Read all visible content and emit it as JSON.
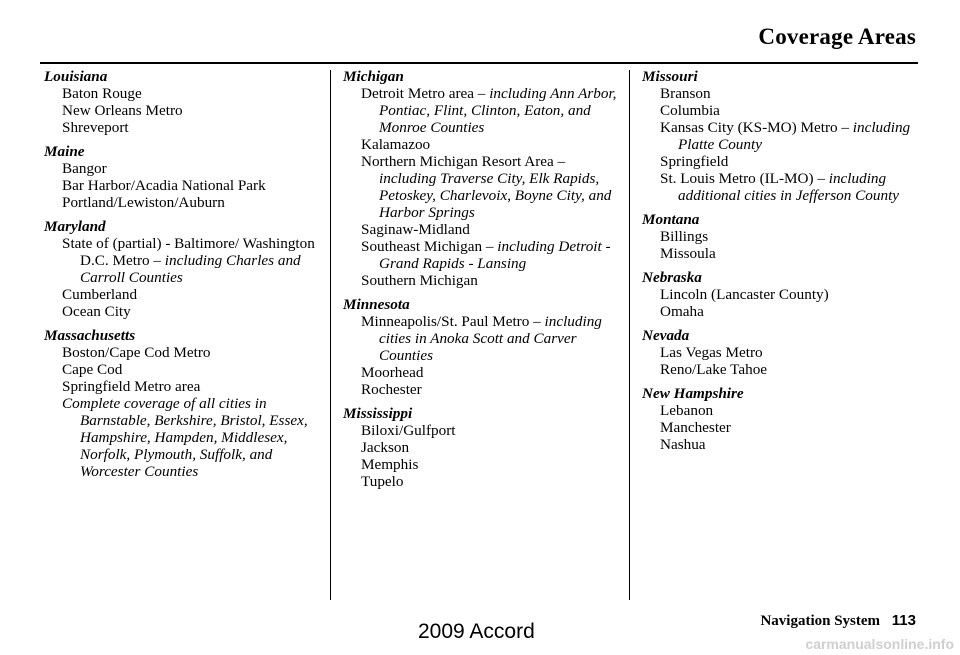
{
  "header": {
    "title": "Coverage Areas"
  },
  "columns": [
    [
      {
        "state": "Louisiana",
        "entries": [
          {
            "text": "Baton Rouge"
          },
          {
            "text": "New Orleans Metro"
          },
          {
            "text": "Shreveport"
          }
        ]
      },
      {
        "state": "Maine",
        "entries": [
          {
            "text": "Bangor"
          },
          {
            "text": "Bar Harbor/Acadia National Park"
          },
          {
            "text": "Portland/Lewiston/Auburn"
          }
        ]
      },
      {
        "state": "Maryland",
        "entries": [
          {
            "text": "State of (partial) - Baltimore/ Washington D.C. Metro – ",
            "detail": "including Charles and Carroll Counties"
          },
          {
            "text": "Cumberland"
          },
          {
            "text": "Ocean City"
          }
        ]
      },
      {
        "state": "Massachusetts",
        "entries": [
          {
            "text": "Boston/Cape Cod Metro"
          },
          {
            "text": "Cape Cod"
          },
          {
            "text": "Springfield Metro area"
          },
          {
            "text": "",
            "detail": "Complete coverage of all cities in Barnstable, Berkshire, Bristol, Essex, Hampshire, Hampden, Middlesex, Norfolk, Plymouth, Suffolk, and Worcester Counties"
          }
        ]
      }
    ],
    [
      {
        "state": "Michigan",
        "entries": [
          {
            "text": "Detroit Metro area – ",
            "detail": "including Ann Arbor, Pontiac, Flint, Clinton, Eaton, and Monroe Counties"
          },
          {
            "text": "Kalamazoo"
          },
          {
            "text": "Northern Michigan Resort Area – ",
            "detail": "including Traverse City, Elk Rapids, Petoskey, Charlevoix, Boyne City, and Harbor Springs"
          },
          {
            "text": "Saginaw-Midland"
          },
          {
            "text": "Southeast Michigan – ",
            "detail": "including Detroit - Grand Rapids - Lansing"
          },
          {
            "text": "Southern Michigan"
          }
        ]
      },
      {
        "state": "Minnesota",
        "entries": [
          {
            "text": "Minneapolis/St. Paul Metro – ",
            "detail": "including cities in Anoka Scott and Carver Counties"
          },
          {
            "text": "Moorhead"
          },
          {
            "text": "Rochester"
          }
        ]
      },
      {
        "state": "Mississippi",
        "entries": [
          {
            "text": "Biloxi/Gulfport"
          },
          {
            "text": "Jackson"
          },
          {
            "text": "Memphis"
          },
          {
            "text": "Tupelo"
          }
        ]
      }
    ],
    [
      {
        "state": "Missouri",
        "entries": [
          {
            "text": "Branson"
          },
          {
            "text": "Columbia"
          },
          {
            "text": "Kansas City (KS-MO) Metro – ",
            "detail": "including Platte County"
          },
          {
            "text": "Springfield"
          },
          {
            "text": "St. Louis Metro (IL-MO) – ",
            "detail": "including additional cities in Jefferson County"
          }
        ]
      },
      {
        "state": "Montana",
        "entries": [
          {
            "text": "Billings"
          },
          {
            "text": "Missoula"
          }
        ]
      },
      {
        "state": "Nebraska",
        "entries": [
          {
            "text": "Lincoln (Lancaster County)"
          },
          {
            "text": "Omaha"
          }
        ]
      },
      {
        "state": "Nevada",
        "entries": [
          {
            "text": "Las Vegas Metro"
          },
          {
            "text": "Reno/Lake Tahoe"
          }
        ]
      },
      {
        "state": "New Hampshire",
        "entries": [
          {
            "text": "Lebanon"
          },
          {
            "text": "Manchester"
          },
          {
            "text": "Nashua"
          }
        ]
      }
    ]
  ],
  "footer": {
    "section": "Navigation System",
    "page_number": "113"
  },
  "watermark": {
    "model": "2009  Accord",
    "site": "carmanualsonline.info"
  }
}
